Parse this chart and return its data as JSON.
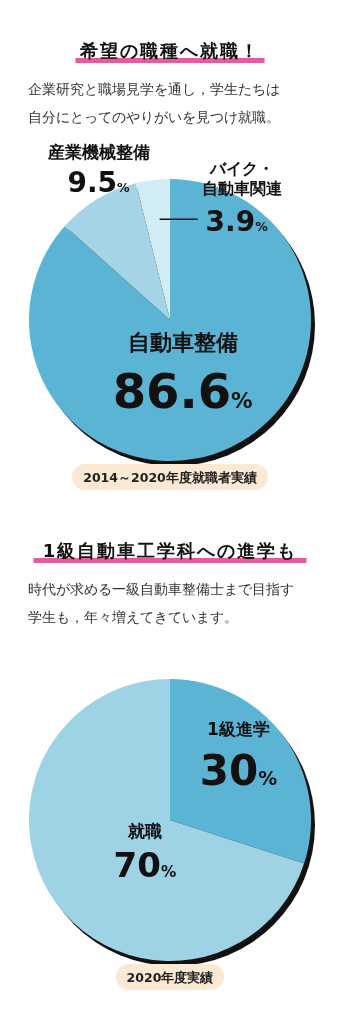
{
  "chart_data": [
    {
      "type": "pie",
      "title": "希望の職種へ就職！",
      "subtitle": "企業研究と職場見学を通し，学生たちは自分にとってのやりがいを見つけ就職。",
      "categories": [
        "自動車整備",
        "産業機械整備",
        "バイク・自動車関連"
      ],
      "values": [
        86.6,
        9.5,
        3.9
      ],
      "colors": [
        "#5bb4d4",
        "#a4d4e5",
        "#d2ecf4"
      ],
      "value_labels": [
        "86.6%",
        "9.5%",
        "3.9%"
      ],
      "annotations": [
        "2014～2020年度就職者実績"
      ]
    },
    {
      "type": "pie",
      "title": "1級自動車工学科への進学も",
      "subtitle": "時代が求める一級自動車整備士まで目指す学生も，年々増えてきています。",
      "categories": [
        "1級進学",
        "就職"
      ],
      "values": [
        30,
        70
      ],
      "colors": [
        "#5bb4d4",
        "#9dd3e4"
      ],
      "value_labels": [
        "30%",
        "70%"
      ],
      "annotations": [
        "2020年度実績"
      ]
    }
  ]
}
